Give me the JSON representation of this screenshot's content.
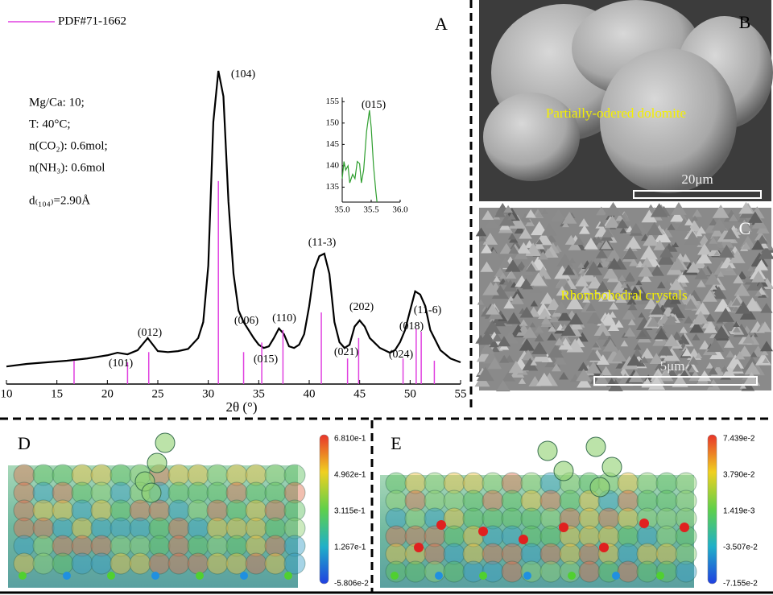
{
  "chart_data": [
    {
      "type": "line",
      "panel_label": "A",
      "x_label": "2θ (°)",
      "xlim": [
        10,
        55
      ],
      "xticks": [
        10,
        15,
        20,
        25,
        30,
        35,
        40,
        45,
        50,
        55
      ],
      "ylim": [
        0,
        100
      ],
      "x": [
        10,
        12,
        14,
        16,
        18,
        20,
        21,
        22,
        23,
        24,
        25,
        26,
        27,
        28,
        29,
        29.5,
        30,
        30.5,
        31,
        31.5,
        32,
        32.5,
        33,
        33.5,
        34,
        34.5,
        35,
        35.5,
        36,
        36.5,
        37,
        37.5,
        38,
        38.5,
        39,
        39.5,
        40,
        40.5,
        41,
        41.5,
        42,
        42.5,
        43,
        43.5,
        44,
        44.5,
        45,
        45.5,
        46,
        47,
        48,
        48.5,
        49,
        49.5,
        50,
        50.5,
        51,
        51.5,
        52,
        53,
        54,
        55
      ],
      "series": [
        {
          "type": "line",
          "color": "#000000",
          "values": [
            5.5,
            6.3,
            6.8,
            7.3,
            8,
            9,
            9.8,
            9.3,
            10.6,
            14.4,
            10.3,
            10,
            10.3,
            11,
            14.4,
            19.4,
            37,
            82,
            98,
            90,
            57,
            34.5,
            23,
            19.4,
            16.9,
            14.4,
            12.3,
            11.3,
            11.8,
            14.4,
            17.4,
            15.6,
            11.8,
            11.3,
            12.3,
            15.6,
            24.4,
            35.8,
            40,
            40.8,
            34.5,
            19.4,
            13.1,
            11.3,
            12.3,
            18,
            19.9,
            18,
            14.4,
            11.3,
            9.8,
            10.6,
            13.1,
            16.9,
            23,
            29,
            28,
            24.4,
            16.9,
            10.6,
            8,
            6.8
          ]
        },
        {
          "type": "stem",
          "name": "PDF#71-1662",
          "color": "#e040e0",
          "x": [
            16.7,
            22.0,
            24.1,
            31.0,
            33.5,
            35.3,
            37.4,
            41.2,
            43.8,
            44.9,
            49.3,
            50.6,
            51.1,
            52.4
          ],
          "values": [
            7.3,
            6.8,
            10,
            63.5,
            10,
            13,
            16.9,
            22.4,
            8,
            14.4,
            8,
            17.4,
            16.4,
            7.3
          ]
        }
      ],
      "peak_labels": [
        "(104)",
        "(006)",
        "(015)",
        "(110)",
        "(11-3)",
        "(202)",
        "(021)",
        "(101)",
        "(012)",
        "(024)",
        "(018)",
        "(11-6)"
      ],
      "annotations": [
        "Mg/Ca: 10;",
        "T: 40°C;",
        "n(CO₂): 0.6mol;",
        "n(NH₃): 0.6mol",
        "d₍₁₀₄₎=2.90Å"
      ]
    },
    {
      "type": "line",
      "title": "(015)",
      "color": "#2e9e2e",
      "xlim": [
        35,
        36
      ],
      "xticks": [
        {
          "value": 35,
          "label": "35.0"
        },
        {
          "value": 35.5,
          "label": "35.5"
        },
        {
          "value": 36,
          "label": "36.0"
        }
      ],
      "ylim": [
        131.5,
        156
      ],
      "yticks": [
        135,
        140,
        145,
        150,
        155
      ],
      "x": [
        35.0,
        35.03,
        35.06,
        35.1,
        35.13,
        35.18,
        35.22,
        35.26,
        35.3,
        35.33,
        35.37,
        35.42,
        35.47,
        35.5,
        35.54,
        35.58,
        35.6
      ],
      "values": [
        137,
        141,
        139,
        140,
        136,
        138,
        137,
        141,
        140.5,
        136,
        139,
        148,
        153,
        149,
        140,
        134,
        131.5
      ]
    }
  ],
  "panels": [
    {
      "label": "B",
      "caption": "Partially-odered dolomite",
      "scale_bar": "20μm"
    },
    {
      "label": "C",
      "caption": "Rhombohedral crystals",
      "scale_bar": "5μm"
    },
    {
      "label": "D",
      "colorbar": [
        "6.810e-1",
        "4.962e-1",
        "3.115e-1",
        "1.267e-1",
        "-5.806e-2"
      ]
    },
    {
      "label": "E",
      "colorbar": [
        "7.439e-2",
        "3.790e-2",
        "1.419e-3",
        "-3.507e-2",
        "-7.155e-2"
      ]
    }
  ]
}
